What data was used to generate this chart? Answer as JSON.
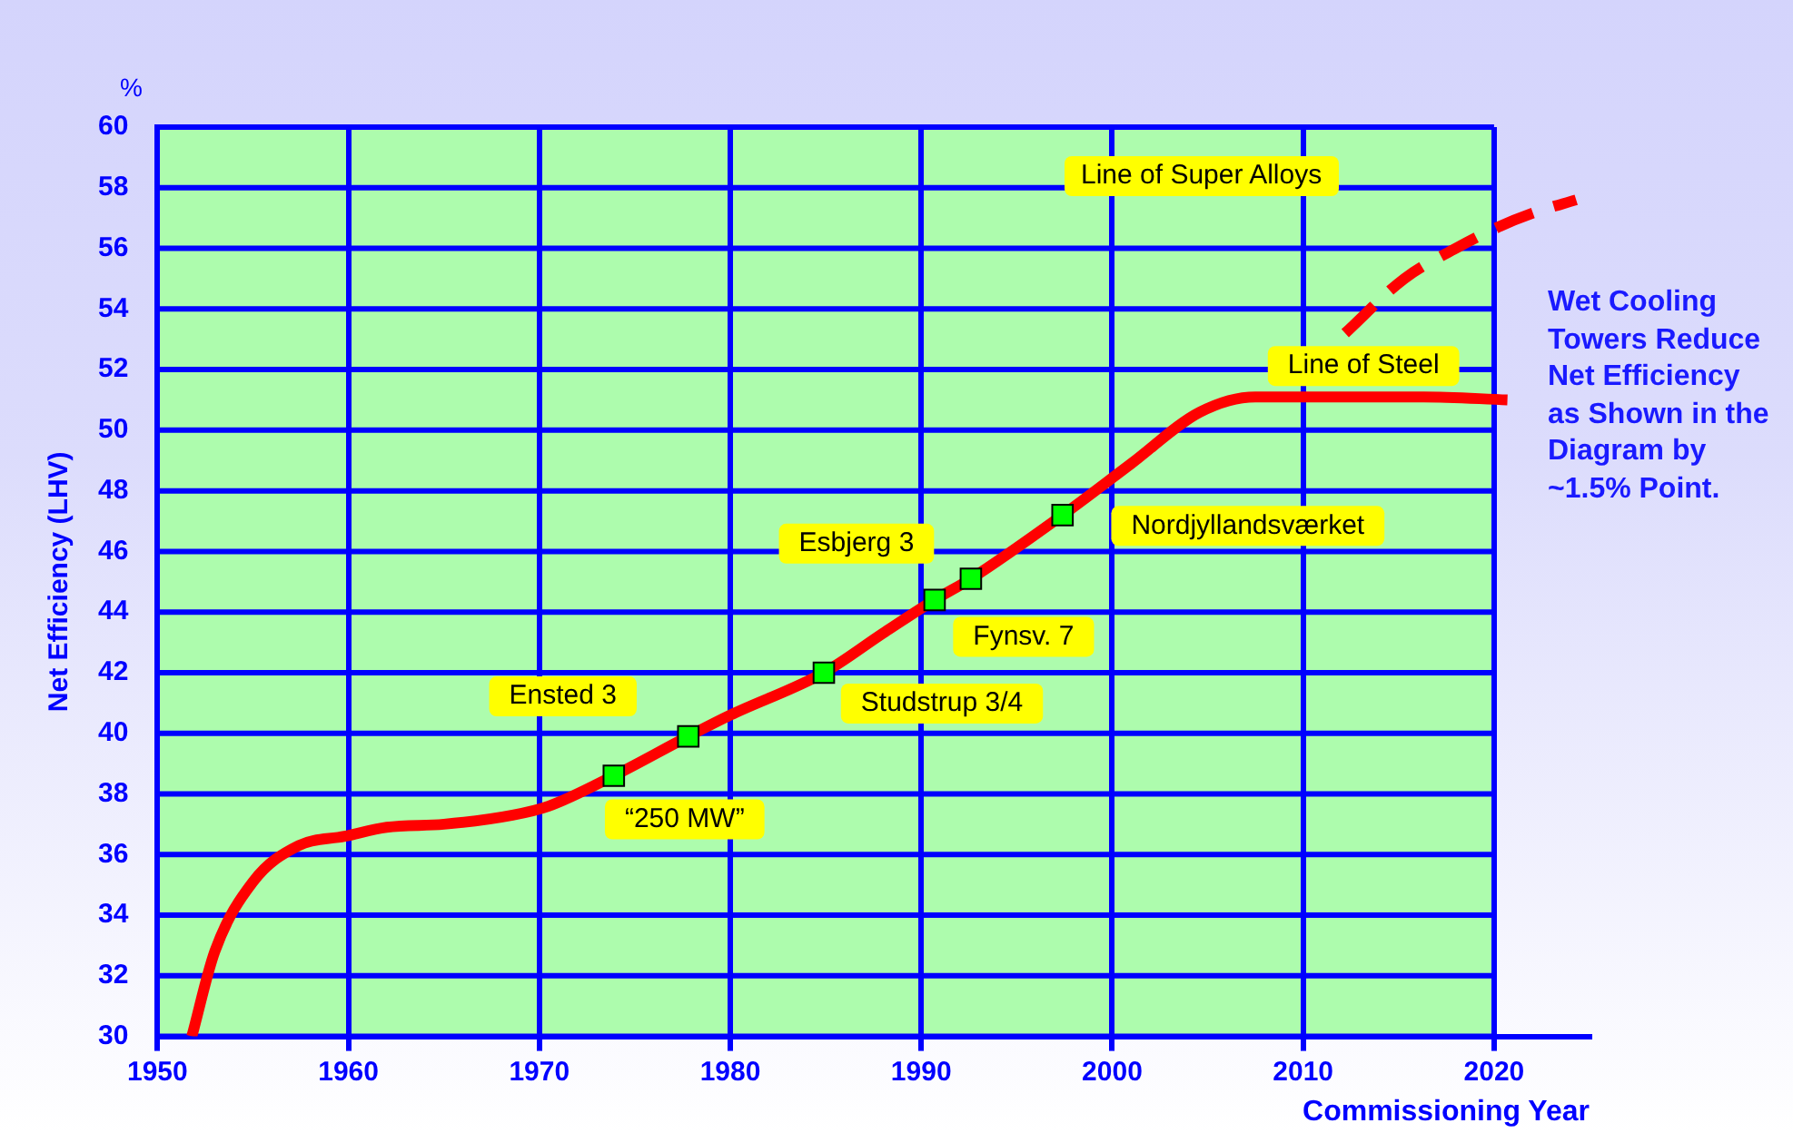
{
  "chart_data": {
    "type": "line",
    "xlabel": "Commissioning Year",
    "ylabel": "Net Efficiency (LHV)",
    "xlim": [
      1950,
      2025
    ],
    "ylim": [
      30,
      60
    ],
    "xticks": [
      1950,
      1960,
      1970,
      1980,
      1990,
      2000,
      2010,
      2020
    ],
    "yticks": [
      30,
      32,
      34,
      36,
      38,
      40,
      42,
      44,
      46,
      48,
      50,
      52,
      54,
      56,
      58,
      60
    ],
    "grid": true,
    "legend": false,
    "series": [
      {
        "type": "line",
        "color": "#ff0000",
        "line_style": "solid",
        "marker": "none",
        "x": [
          1951.8,
          1953,
          1955,
          1957.4,
          1959.8,
          1962,
          1965,
          1968.6,
          1970.5,
          1973.9,
          1977.8,
          1980,
          1984.9,
          1988,
          1990.7,
          1992.6,
          1997.4,
          2001,
          2004.6,
          2007.5,
          2010.5,
          2016.3,
          2020.7
        ],
        "values": [
          30,
          32.8,
          35.1,
          36.3,
          36.6,
          36.9,
          37.0,
          37.3,
          37.6,
          38.6,
          39.9,
          40.6,
          42.0,
          43.3,
          44.4,
          45.1,
          47.2,
          48.9,
          50.6,
          51.1,
          51.1,
          51.1,
          51.0
        ]
      },
      {
        "type": "line",
        "color": "#ff0000",
        "line_style": "dashed",
        "marker": "none",
        "x": [
          2012.2,
          2015.3,
          2018,
          2020.2,
          2022.2,
          2024.3
        ],
        "values": [
          53.2,
          55.0,
          56.0,
          56.7,
          57.2,
          57.6
        ]
      },
      {
        "type": "scatter",
        "color": "#00ff00",
        "marker": "square",
        "x": [
          1973.9,
          1977.8,
          1984.9,
          1990.7,
          1992.6,
          1997.4
        ],
        "values": [
          38.6,
          39.9,
          42.0,
          44.4,
          45.1,
          47.2
        ]
      }
    ],
    "annotations": [
      "%",
      {
        "text": "Ensted 3",
        "x": 1977.8,
        "y": 39.9
      },
      {
        "text": "“250 MW”",
        "x": 1973.9,
        "y": 38.6
      },
      {
        "text": "Studstrup 3/4",
        "x": 1984.9,
        "y": 42.0
      },
      {
        "text": "Esbjerg 3",
        "x": 1990.7,
        "y": 44.4
      },
      {
        "text": "Fynsv. 7",
        "x": 1992.6,
        "y": 45.1
      },
      {
        "text": "Nordjyllandsværket",
        "x": 1997.4,
        "y": 47.2
      },
      {
        "text": "Line of Steel",
        "x": 2010.5,
        "y": 51.1
      },
      "Line of Super Alloys",
      "Wet Cooling Towers Reduce Net Efficiency as Shown in the Diagram by ~1.5% Point."
    ]
  }
}
